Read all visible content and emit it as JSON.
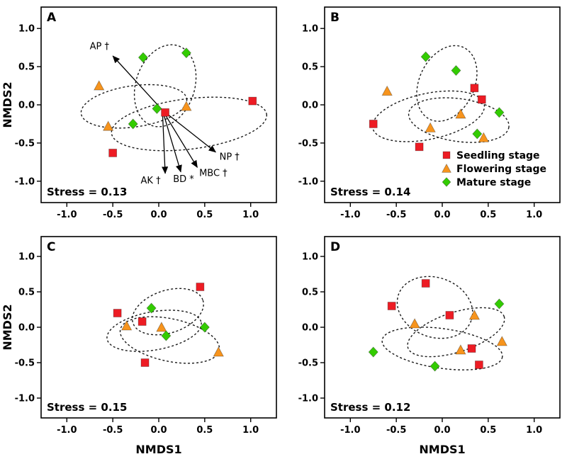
{
  "figure": {
    "title": ""
  },
  "legend": {
    "items": [
      {
        "key": "seedling",
        "label": "Seedling stage",
        "marker": "square",
        "color": "#ed1c24"
      },
      {
        "key": "flowering",
        "label": "Flowering stage",
        "marker": "triangle",
        "color": "#f7941d"
      },
      {
        "key": "mature",
        "label": "Mature stage",
        "marker": "diamond",
        "color": "#33cc00"
      }
    ]
  },
  "chart_data": {
    "type": "scatter",
    "xlabel": "NMDS1",
    "ylabel": "NMDS2",
    "xlim": [
      -1.28,
      1.28
    ],
    "ylim": [
      -1.28,
      1.28
    ],
    "ticks": [
      -1.0,
      -0.5,
      0.0,
      0.5,
      1.0
    ],
    "tick_labels": [
      "-1.0",
      "-0.5",
      "0.0",
      "0.5",
      "1.0"
    ],
    "grid": false,
    "panels": [
      {
        "label": "A",
        "stress": "Stress = 0.13",
        "show_xlabel": false,
        "show_ylabel": true,
        "legend": false,
        "series": [
          {
            "key": "seedling",
            "name": "Seedling stage",
            "marker": "square",
            "color": "#ed1c24",
            "points": [
              [
                1.02,
                0.05
              ],
              [
                0.07,
                -0.1
              ],
              [
                -0.5,
                -0.63
              ]
            ]
          },
          {
            "key": "flowering",
            "name": "Flowering stage",
            "marker": "triangle",
            "color": "#f7941d",
            "points": [
              [
                -0.65,
                0.25
              ],
              [
                0.3,
                -0.02
              ],
              [
                -0.55,
                -0.28
              ]
            ]
          },
          {
            "key": "mature",
            "name": "Mature stage",
            "marker": "diamond",
            "color": "#33cc00",
            "points": [
              [
                -0.17,
                0.62
              ],
              [
                0.3,
                0.68
              ],
              [
                -0.02,
                -0.05
              ],
              [
                -0.28,
                -0.25
              ]
            ]
          }
        ],
        "ellipses": [
          {
            "cx": 0.07,
            "cy": 0.25,
            "rx": 0.32,
            "ry": 0.55,
            "angle": 18
          },
          {
            "cx": -0.27,
            "cy": -0.02,
            "rx": 0.58,
            "ry": 0.27,
            "angle": -8
          },
          {
            "cx": 0.33,
            "cy": -0.25,
            "rx": 0.85,
            "ry": 0.33,
            "angle": -7
          }
        ],
        "arrows": [
          {
            "x1": 0.04,
            "y1": -0.07,
            "x2": -0.5,
            "y2": 0.64,
            "label": "AP †",
            "lx": -0.54,
            "ly": 0.73,
            "anchor": "end"
          },
          {
            "x1": 0.04,
            "y1": -0.07,
            "x2": 0.62,
            "y2": -0.62,
            "label": "NP †",
            "lx": 0.66,
            "ly": -0.72,
            "anchor": "start"
          },
          {
            "x1": 0.04,
            "y1": -0.07,
            "x2": 0.42,
            "y2": -0.82,
            "label": "MBC †",
            "lx": 0.44,
            "ly": -0.93,
            "anchor": "start"
          },
          {
            "x1": 0.04,
            "y1": -0.07,
            "x2": 0.24,
            "y2": -0.88,
            "label": "BD *",
            "lx": 0.27,
            "ly": -1.01,
            "anchor": "middle"
          },
          {
            "x1": 0.04,
            "y1": -0.07,
            "x2": 0.07,
            "y2": -0.9,
            "label": "AK †",
            "lx": 0.02,
            "ly": -1.03,
            "anchor": "end"
          }
        ]
      },
      {
        "label": "B",
        "stress": "Stress = 0.14",
        "show_xlabel": false,
        "show_ylabel": false,
        "legend": true,
        "series": [
          {
            "key": "seedling",
            "name": "Seedling stage",
            "marker": "square",
            "color": "#ed1c24",
            "points": [
              [
                -0.75,
                -0.25
              ],
              [
                -0.25,
                -0.55
              ],
              [
                0.35,
                0.22
              ],
              [
                0.43,
                0.07
              ]
            ]
          },
          {
            "key": "flowering",
            "name": "Flowering stage",
            "marker": "triangle",
            "color": "#f7941d",
            "points": [
              [
                -0.6,
                0.18
              ],
              [
                -0.13,
                -0.3
              ],
              [
                0.2,
                -0.12
              ],
              [
                0.45,
                -0.43
              ]
            ]
          },
          {
            "key": "mature",
            "name": "Mature stage",
            "marker": "diamond",
            "color": "#33cc00",
            "points": [
              [
                -0.18,
                0.63
              ],
              [
                0.15,
                0.45
              ],
              [
                0.62,
                -0.1
              ],
              [
                0.38,
                -0.38
              ]
            ]
          }
        ],
        "ellipses": [
          {
            "cx": 0.05,
            "cy": 0.28,
            "rx": 0.3,
            "ry": 0.52,
            "angle": 25
          },
          {
            "cx": -0.15,
            "cy": -0.15,
            "rx": 0.62,
            "ry": 0.3,
            "angle": -12
          },
          {
            "cx": 0.18,
            "cy": -0.2,
            "rx": 0.55,
            "ry": 0.28,
            "angle": 8
          }
        ],
        "arrows": []
      },
      {
        "label": "C",
        "stress": "Stress = 0.15",
        "show_xlabel": true,
        "show_ylabel": true,
        "legend": false,
        "series": [
          {
            "key": "seedling",
            "name": "Seedling stage",
            "marker": "square",
            "color": "#ed1c24",
            "points": [
              [
                -0.45,
                0.2
              ],
              [
                -0.18,
                0.08
              ],
              [
                0.45,
                0.57
              ],
              [
                -0.15,
                -0.5
              ]
            ]
          },
          {
            "key": "flowering",
            "name": "Flowering stage",
            "marker": "triangle",
            "color": "#f7941d",
            "points": [
              [
                -0.35,
                0.02
              ],
              [
                0.03,
                0.0
              ],
              [
                0.65,
                -0.35
              ]
            ]
          },
          {
            "key": "mature",
            "name": "Mature stage",
            "marker": "diamond",
            "color": "#33cc00",
            "points": [
              [
                -0.08,
                0.27
              ],
              [
                0.08,
                -0.12
              ],
              [
                0.5,
                0.0
              ]
            ]
          }
        ],
        "ellipses": [
          {
            "cx": 0.1,
            "cy": 0.22,
            "rx": 0.4,
            "ry": 0.3,
            "angle": -18
          },
          {
            "cx": -0.05,
            "cy": -0.05,
            "rx": 0.52,
            "ry": 0.27,
            "angle": -10
          },
          {
            "cx": 0.12,
            "cy": -0.18,
            "rx": 0.55,
            "ry": 0.3,
            "angle": 12
          }
        ],
        "arrows": []
      },
      {
        "label": "D",
        "stress": "Stress = 0.12",
        "show_xlabel": true,
        "show_ylabel": false,
        "legend": false,
        "series": [
          {
            "key": "seedling",
            "name": "Seedling stage",
            "marker": "square",
            "color": "#ed1c24",
            "points": [
              [
                -0.55,
                0.3
              ],
              [
                -0.18,
                0.62
              ],
              [
                0.08,
                0.17
              ],
              [
                0.32,
                -0.3
              ],
              [
                0.4,
                -0.53
              ]
            ]
          },
          {
            "key": "flowering",
            "name": "Flowering stage",
            "marker": "triangle",
            "color": "#f7941d",
            "points": [
              [
                -0.3,
                0.05
              ],
              [
                0.35,
                0.17
              ],
              [
                0.2,
                -0.32
              ],
              [
                0.65,
                -0.2
              ]
            ]
          },
          {
            "key": "mature",
            "name": "Mature stage",
            "marker": "diamond",
            "color": "#33cc00",
            "points": [
              [
                -0.75,
                -0.35
              ],
              [
                0.62,
                0.33
              ],
              [
                -0.08,
                -0.55
              ]
            ]
          }
        ],
        "ellipses": [
          {
            "cx": -0.08,
            "cy": 0.28,
            "rx": 0.42,
            "ry": 0.42,
            "angle": 20
          },
          {
            "cx": 0.15,
            "cy": -0.07,
            "rx": 0.55,
            "ry": 0.28,
            "angle": -18
          },
          {
            "cx": 0.0,
            "cy": -0.3,
            "rx": 0.66,
            "ry": 0.28,
            "angle": 8
          }
        ],
        "arrows": []
      }
    ]
  }
}
